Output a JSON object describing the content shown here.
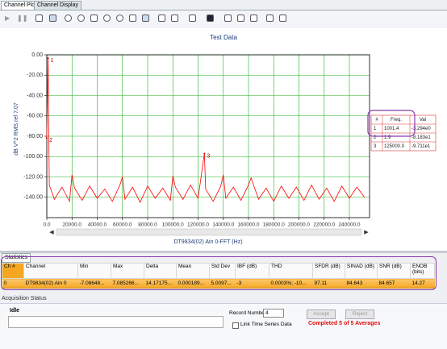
{
  "tabs": [
    "Channel Plot",
    "Channel Display"
  ],
  "chart_data": {
    "type": "line",
    "title": "Test Data",
    "x_label": "DT9834(02) Ain 0-FFT (Hz)",
    "y_label": "dB V^2 RMS ref 7.07",
    "xlim": [
      0,
      256000
    ],
    "ylim": [
      -160,
      0
    ],
    "xticks": [
      {
        "value": 0,
        "label": "0.0"
      },
      {
        "value": 20000,
        "label": "20000.0"
      },
      {
        "value": 40000,
        "label": "40000.0"
      },
      {
        "value": 60000,
        "label": "60000.0"
      },
      {
        "value": 80000,
        "label": "80000.0"
      },
      {
        "value": 100000,
        "label": "100000.0"
      },
      {
        "value": 120000,
        "label": "120000.0"
      },
      {
        "value": 140000,
        "label": "140000.0"
      },
      {
        "value": 160000,
        "label": "160000.0"
      },
      {
        "value": 180000,
        "label": "180000.0"
      },
      {
        "value": 200000,
        "label": "200000.0"
      },
      {
        "value": 220000,
        "label": "220000.0"
      },
      {
        "value": 240000,
        "label": "240000.0"
      }
    ],
    "yticks": [
      {
        "value": 0,
        "label": "0.00"
      },
      {
        "value": -20,
        "label": "-20.00"
      },
      {
        "value": -40,
        "label": "-40.00"
      },
      {
        "value": -60,
        "label": "-60.00"
      },
      {
        "value": -80,
        "label": "-80.00"
      },
      {
        "value": -100,
        "label": "-100.00"
      },
      {
        "value": -120,
        "label": "-120.00"
      },
      {
        "value": -140,
        "label": "-140.00"
      }
    ],
    "grid": true,
    "grid_color": "#22b022",
    "series": [
      {
        "color": "#ff0000",
        "x": [
          0,
          1000,
          2000,
          6000,
          12000,
          18000,
          20000,
          22000,
          28000,
          34000,
          40000,
          46000,
          52000,
          58000,
          60000,
          62000,
          68000,
          74000,
          80000,
          86000,
          92000,
          98000,
          100000,
          102000,
          108000,
          114000,
          120000,
          125000,
          126000,
          132000,
          138000,
          140000,
          142000,
          148000,
          154000,
          160000,
          162000,
          168000,
          174000,
          180000,
          186000,
          192000,
          198000,
          204000,
          210000,
          216000,
          222000,
          228000,
          234000,
          240000,
          246000,
          252000
        ],
        "values": [
          -81.8,
          -3.3,
          -128,
          -142,
          -130,
          -144,
          -118,
          -131,
          -143,
          -129,
          -141,
          -132,
          -144,
          -128,
          -120,
          -142,
          -130,
          -145,
          -129,
          -141,
          -131,
          -143,
          -119,
          -130,
          -142,
          -128,
          -141,
          -97,
          -132,
          -144,
          -129,
          -118,
          -141,
          -130,
          -143,
          -128,
          -121,
          -142,
          -131,
          -144,
          -129,
          -141,
          -130,
          -143,
          -128,
          -142,
          -131,
          -144,
          -129,
          -141,
          -130,
          -140
        ]
      }
    ],
    "markers": {
      "headers": [
        "#",
        "Freq.",
        "Val"
      ],
      "numbers": [
        "1",
        "2",
        "3"
      ],
      "freq": [
        1001.4,
        1.9,
        125000.0
      ],
      "freq_labels": [
        "1001.4",
        "1.9",
        "125000.0"
      ],
      "values": [
        -3.294,
        -81.83,
        -97.11
      ],
      "value_labels": [
        "-3.294e0",
        "-8.183e1",
        "-9.711e1"
      ]
    }
  },
  "statistics": {
    "title": "Statistics",
    "headers": [
      "Ch #",
      "Channel",
      "Min",
      "Max",
      "Delta",
      "Mean",
      "Std Dev",
      "IBF (dB)",
      "THD",
      "SFDR (dB)",
      "SINAD (dB)",
      "SNR (dB)",
      "ENOB (bits)"
    ],
    "rows": [
      [
        0,
        "DT9834(02) Ain 0",
        "-7.08648...",
        "7.085266...",
        "14.17175...",
        "0.000189...",
        "5.0097...",
        -3,
        "0.0003%; -10...",
        97.11,
        84.643,
        84.657,
        14.27
      ]
    ]
  },
  "acquisition": {
    "title": "Acquisition Status",
    "status": "Idle",
    "record_label": "Record Number",
    "record_number": 4,
    "link_label": "Link Time Series Data",
    "accept": "Accept",
    "reject": "Reject",
    "message": "Completed 5 of 5 Averages"
  }
}
